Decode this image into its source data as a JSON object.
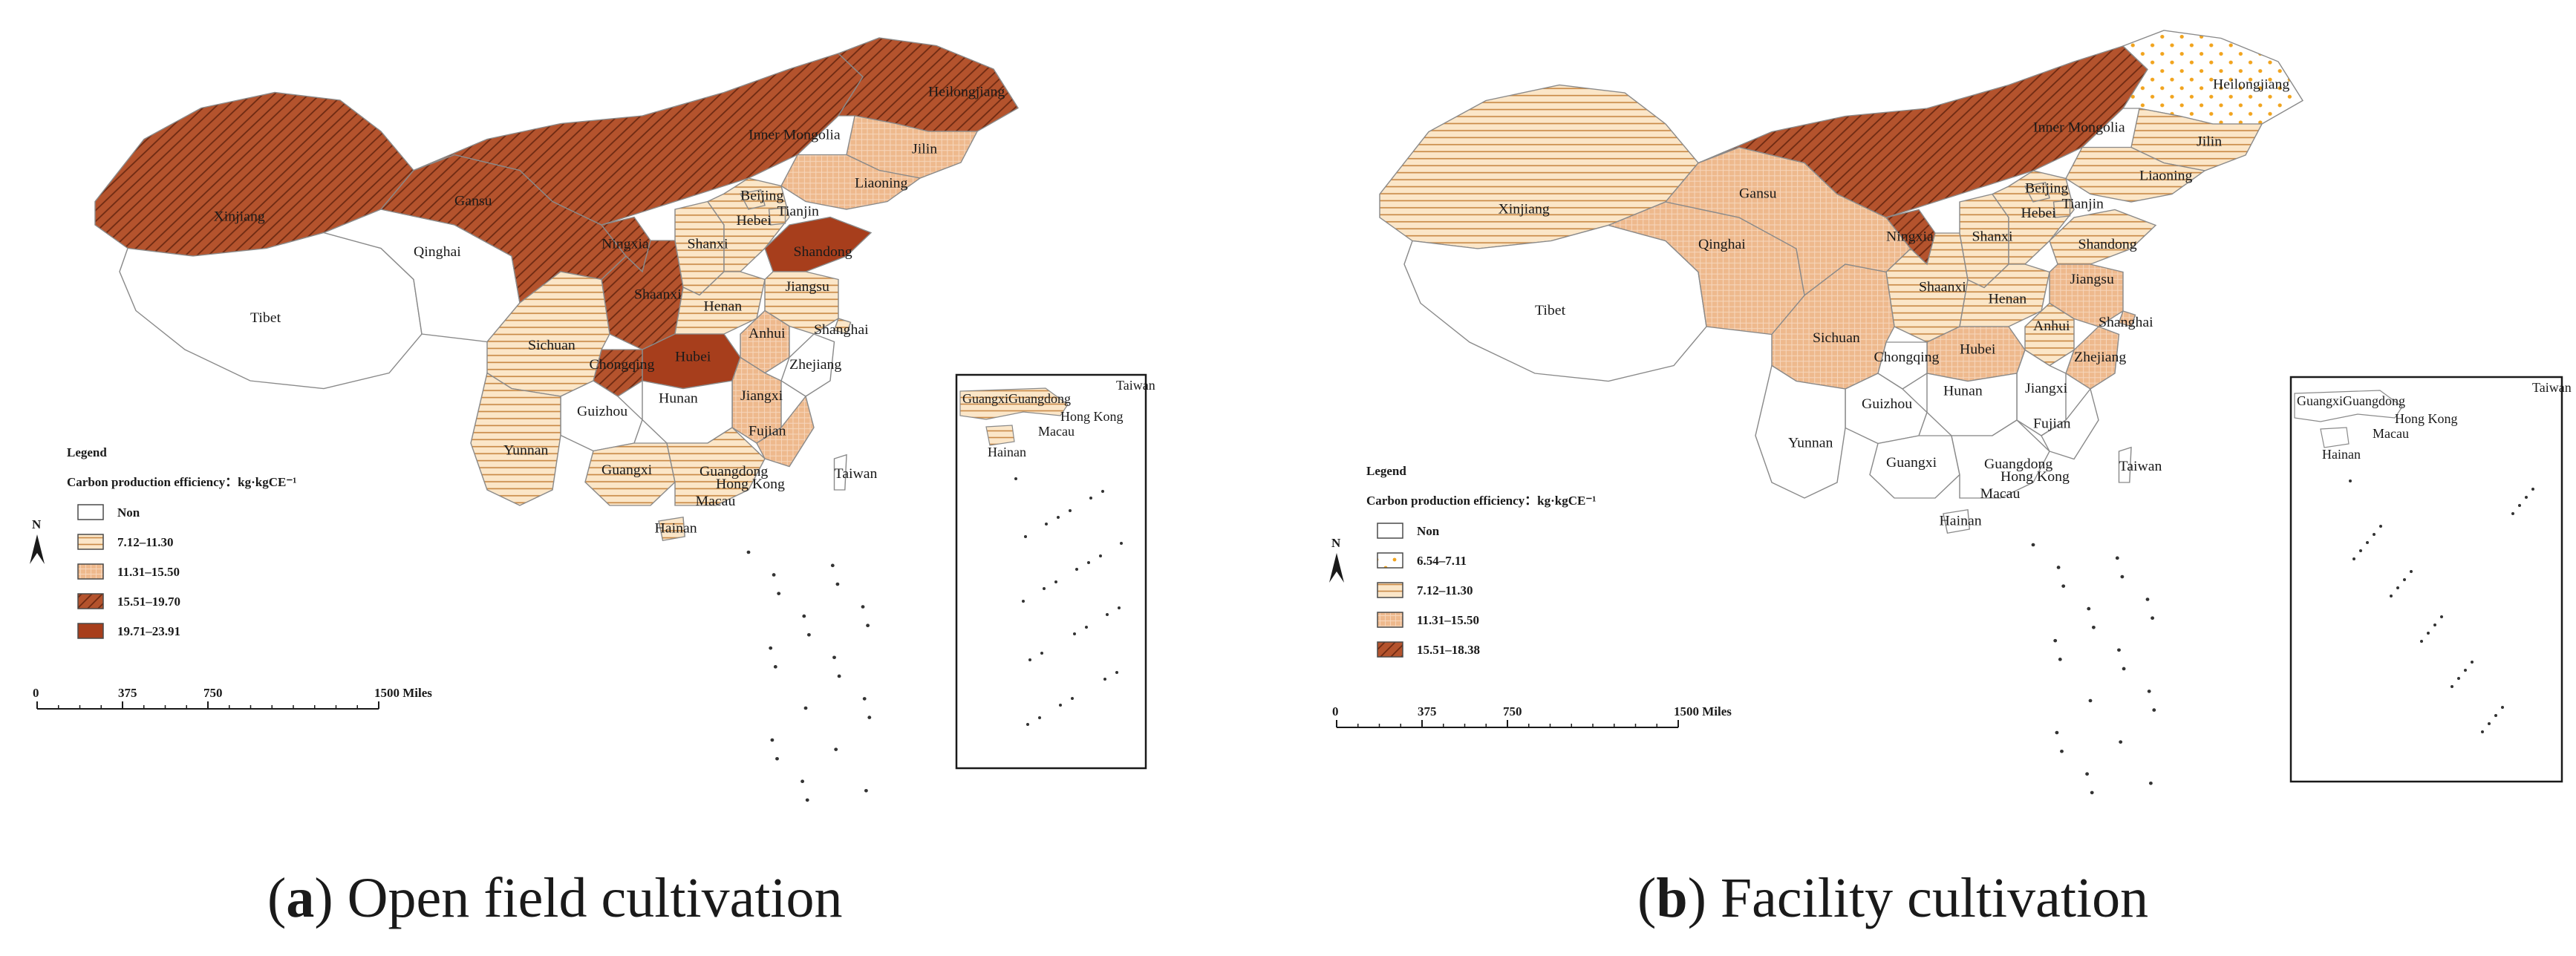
{
  "panels": [
    {
      "caption_letter": "a",
      "caption_text": " Open field cultivation",
      "legend": {
        "title": "Legend",
        "subtitle": "Carbon production efficiency：kg·kgCE⁻¹",
        "items": [
          "Non",
          "7.12–11.30",
          "11.31–15.50",
          "15.51–19.70",
          "19.71–23.91"
        ]
      },
      "scale": {
        "ticks": [
          "0",
          "375",
          "750",
          "1500 Miles"
        ]
      },
      "north": "N",
      "provinces": [
        "Heilongjiang",
        "Jilin",
        "Liaoning",
        "Inner Mongolia",
        "Xinjiang",
        "Gansu",
        "Qinghai",
        "Tibet",
        "Ningxia",
        "Beijing",
        "Tianjin",
        "Hebei",
        "Shanxi",
        "Shandong",
        "Shaanxi",
        "Henan",
        "Jiangsu",
        "Sichuan",
        "Chongqing",
        "Hubei",
        "Anhui",
        "Shanghai",
        "Zhejiang",
        "Hunan",
        "Jiangxi",
        "Guizhou",
        "Yunnan",
        "Guangxi",
        "Guangdong",
        "Fujian",
        "Taiwan",
        "Hong Kong",
        "Macau",
        "Hainan"
      ],
      "inset_labels": [
        "GuangxiGuangdong",
        "Taiwan",
        "Hong Kong",
        "Macau",
        "Hainan"
      ],
      "classes": {
        "Heilongjiang": 3,
        "Inner Mongolia": 3,
        "Xinjiang": 3,
        "Gansu": 3,
        "Ningxia": 3,
        "Shaanxi": 3,
        "Chongqing": 3,
        "Jilin": 2,
        "Liaoning": 2,
        "Anhui": 2,
        "Jiangxi": 2,
        "Fujian": 2,
        "Shandong": 4,
        "Hubei": 4,
        "Qinghai": 0,
        "Tibet": 0,
        "Hunan": 0,
        "Guizhou": 0,
        "Zhejiang": 0,
        "Taiwan": 0,
        "Beijing": 1,
        "Tianjin": 1,
        "Hebei": 1,
        "Shanxi": 1,
        "Henan": 1,
        "Jiangsu": 1,
        "Shanghai": 1,
        "Sichuan": 1,
        "Yunnan": 1,
        "Guangxi": 1,
        "Guangdong": 1,
        "Hainan": 1
      }
    },
    {
      "caption_letter": "b",
      "caption_text": " Facility cultivation",
      "legend": {
        "title": "Legend",
        "subtitle": "Carbon production efficiency：kg·kgCE⁻¹",
        "items": [
          "Non",
          "6.54–7.11",
          "7.12–11.30",
          "11.31–15.50",
          "15.51–18.38"
        ]
      },
      "scale": {
        "ticks": [
          "0",
          "375",
          "750",
          "1500 Miles"
        ]
      },
      "north": "N",
      "provinces": [
        "Heilongjiang",
        "Jilin",
        "Liaoning",
        "Inner Mongolia",
        "Xinjiang",
        "Gansu",
        "Qinghai",
        "Tibet",
        "Ningxia",
        "Beijing",
        "Tianjin",
        "Hebei",
        "Shanxi",
        "Shandong",
        "Shaanxi",
        "Henan",
        "Jiangsu",
        "Sichuan",
        "Chongqing",
        "Hubei",
        "Anhui",
        "Shanghai",
        "Zhejiang",
        "Hunan",
        "Jiangxi",
        "Guizhou",
        "Yunnan",
        "Guangxi",
        "Guangdong",
        "Fujian",
        "Taiwan",
        "Hong Kong",
        "Macau",
        "Hainan"
      ],
      "inset_labels": [
        "GuangxiGuangdong",
        "Taiwan",
        "Hong Kong",
        "Macau",
        "Hainan"
      ],
      "classes": {
        "Heilongjiang": 1,
        "Inner Mongolia": 4,
        "Ningxia": 4,
        "Gansu": 3,
        "Qinghai": 3,
        "Sichuan": 3,
        "Hubei": 3,
        "Jiangsu": 3,
        "Zhejiang": 3,
        "Shanghai": 3,
        "Xinjiang": 2,
        "Jilin": 2,
        "Liaoning": 2,
        "Beijing": 2,
        "Tianjin": 2,
        "Hebei": 2,
        "Shanxi": 2,
        "Shandong": 2,
        "Shaanxi": 2,
        "Henan": 2,
        "Anhui": 2,
        "Tibet": 0,
        "Chongqing": 0,
        "Hunan": 0,
        "Jiangxi": 0,
        "Guizhou": 0,
        "Yunnan": 0,
        "Guangxi": 0,
        "Guangdong": 0,
        "Fujian": 0,
        "Taiwan": 0,
        "Hainan": 0
      }
    }
  ],
  "colors": {
    "non": "#ffffff",
    "stripe_bg": "#fbe6c8",
    "stripe_line": "#c98a47",
    "grid_fill": "#eeb98d",
    "hatch_fill": "#b4532d",
    "dark_fill": "#a73e1c",
    "dot_color": "#f1a41e",
    "border": "#8a8a8a"
  }
}
